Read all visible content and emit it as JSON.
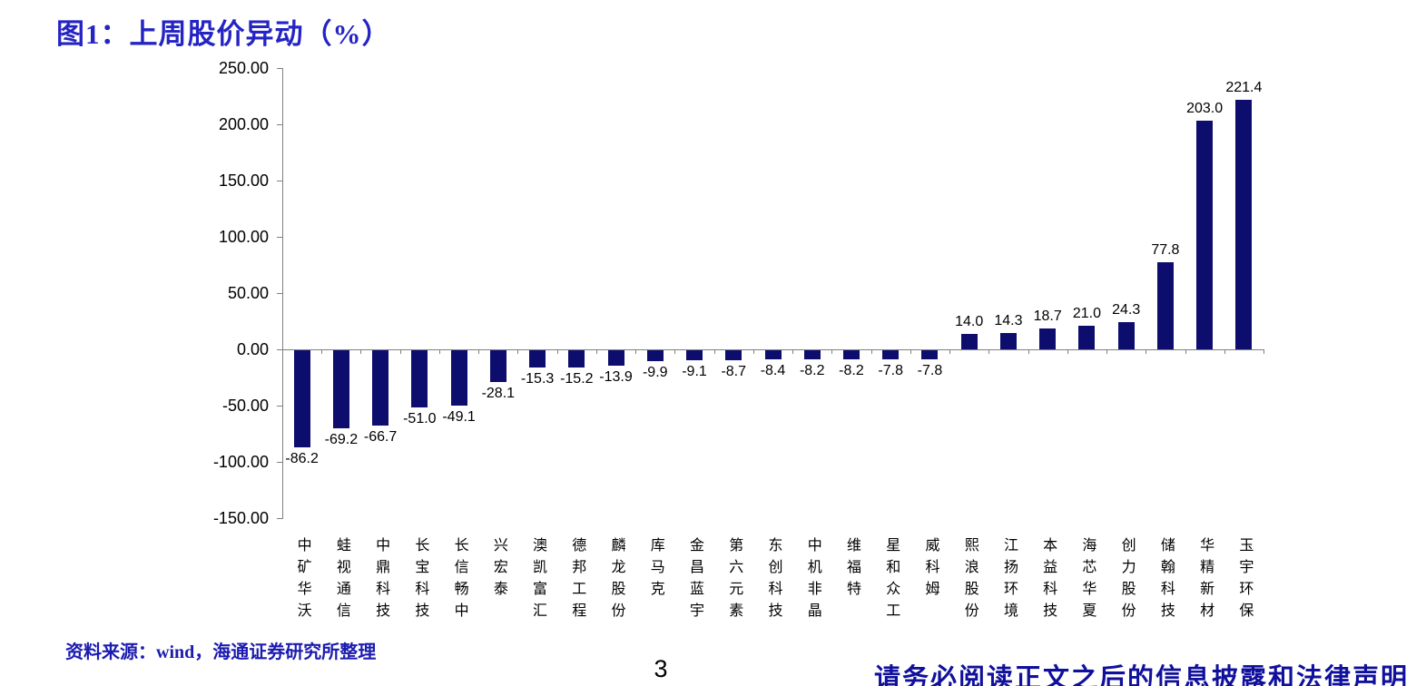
{
  "title": "图1：上周股价异动（%）",
  "footer": {
    "source_note": "资料来源：wind，海通证券研究所整理",
    "page_number": "3",
    "disclaimer": "请务必阅读正文之后的信息披露和法律声明"
  },
  "colors": {
    "bar": "#0d0d6d",
    "title_text": "#2424c4",
    "source_text": "#1b1bb0",
    "disclaimer_text": "#10109c",
    "axis": "#808080",
    "tick_label_text": "#000000"
  },
  "chart_data": {
    "type": "bar",
    "title": "上周股价异动（%）",
    "categories": [
      "中矿华沃",
      "蛙视通信",
      "中鼎科技",
      "长宝科技",
      "长信畅中",
      "兴宏泰",
      "澳凯富汇",
      "德邦工程",
      "麟龙股份",
      "库马克",
      "金昌蓝宇",
      "第六元素",
      "东创科技",
      "中机非晶",
      "维福特",
      "星和众工",
      "威科姆",
      "熙浪股份",
      "江扬环境",
      "本益科技",
      "海芯华夏",
      "创力股份",
      "储翰科技",
      "华精新材",
      "玉宇环保"
    ],
    "values": [
      -86.2,
      -69.2,
      -66.7,
      -51.0,
      -49.1,
      -28.1,
      -15.3,
      -15.2,
      -13.9,
      -9.9,
      -9.1,
      -8.7,
      -8.4,
      -8.2,
      -8.2,
      -7.8,
      -7.8,
      14.0,
      14.3,
      18.7,
      21.0,
      24.3,
      77.8,
      203.0,
      221.4
    ],
    "value_labels": [
      "-86.2",
      "-69.2",
      "-66.7",
      "-51.0",
      "-49.1",
      "-28.1",
      "-15.3",
      "-15.2",
      "-13.9",
      "-9.9",
      "-9.1",
      "-8.7",
      "-8.4",
      "-8.2",
      "-8.2",
      "-7.8",
      "-7.8",
      "14.0",
      "14.3",
      "18.7",
      "21.0",
      "24.3",
      "77.8",
      "203.0",
      "221.4"
    ],
    "y_tick_labels": [
      "250.00",
      "200.00",
      "150.00",
      "100.00",
      "50.00",
      "0.00",
      "-50.00",
      "-100.00",
      "-150.00"
    ],
    "ylim": [
      -150,
      250
    ],
    "y_tick_step": 50,
    "grid": false,
    "legend_position": "none",
    "bar_color": "#0d0d6d",
    "xlabel": "",
    "ylabel": ""
  }
}
